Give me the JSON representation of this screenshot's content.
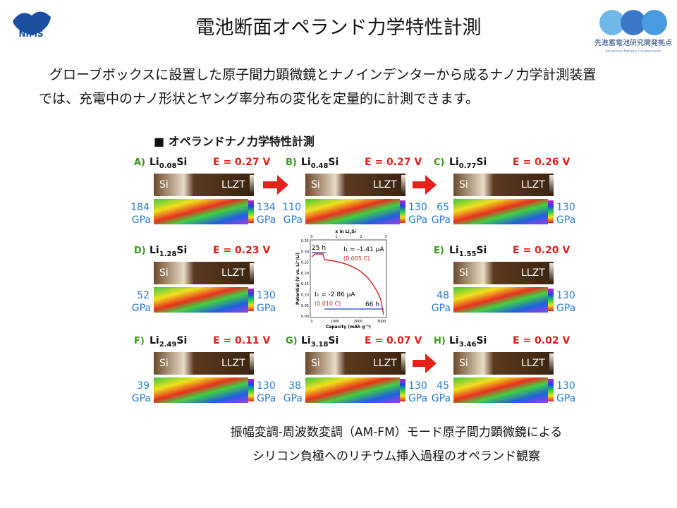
{
  "header": {
    "title": "電池断面オペランド力学特性計測",
    "left_logo": "NIMS",
    "right_logo": "先進蓄電池研究開発拠点",
    "right_logo_sub": "Advanced Battery Collaboration"
  },
  "body": [
    "グローブボックスに設置した原子間力顕微鏡とナノインデンターから成るナノ力学計測装置",
    "では、充電中のナノ形状とヤング率分布の変化を定量的に計測できます。"
  ],
  "figure": {
    "heading": "■ オペランドナノ力学特性計測",
    "panels": [
      {
        "letter": "A)",
        "li": "Li",
        "sub": "0.08",
        "si": "Si",
        "potential": "E = 0.27 V",
        "img_left": "Si",
        "img_right": "LLZT",
        "min": "184",
        "max": "134",
        "unit": "GPa"
      },
      {
        "letter": "B)",
        "li": "Li",
        "sub": "0.48",
        "si": "Si",
        "potential": "E = 0.27 V",
        "img_left": "Si",
        "img_right": "LLZT",
        "min": "110",
        "max": "130",
        "unit": "GPa"
      },
      {
        "letter": "C)",
        "li": "Li",
        "sub": "0.77",
        "si": "Si",
        "potential": "E = 0.26 V",
        "img_left": "Si",
        "img_right": "LLZT",
        "min": "65",
        "max": "130",
        "unit": "GPa"
      },
      {
        "letter": "D)",
        "li": "Li",
        "sub": "1.28",
        "si": "Si",
        "potential": "E = 0.23 V",
        "img_left": "Si",
        "img_right": "LLZT",
        "min": "52",
        "max": "130",
        "unit": "GPa"
      },
      {
        "letter": "E)",
        "li": "Li",
        "sub": "1.55",
        "si": "Si",
        "potential": "E = 0.20 V",
        "img_left": "Si",
        "img_right": "LLZT",
        "min": "48",
        "max": "130",
        "unit": "GPa"
      },
      {
        "letter": "F)",
        "li": "Li",
        "sub": "2.49",
        "si": "Si",
        "potential": "E = 0.11 V",
        "img_left": "Si",
        "img_right": "LLZT",
        "min": "39",
        "max": "130",
        "unit": "GPa"
      },
      {
        "letter": "G)",
        "li": "Li",
        "sub": "3.18",
        "si": "Si",
        "potential": "E = 0.07 V",
        "img_left": "Si",
        "img_right": "LLZT",
        "min": "38",
        "max": "130",
        "unit": "GPa"
      },
      {
        "letter": "H)",
        "li": "Li",
        "sub": "3.46",
        "si": "Si",
        "potential": "E = 0.02 V",
        "img_left": "Si",
        "img_right": "LLZT",
        "min": "45",
        "max": "130",
        "unit": "GPa"
      }
    ],
    "inset": {
      "top_axis": "x in Li",
      "top_axis_sub": "x",
      "top_axis_end": "Si",
      "y_axis": "Potential (V vs. Li⁺/Li)",
      "x_axis": "Capacity (mAh g⁻¹)",
      "yticks": [
        "0.35",
        "0.30",
        "0.25",
        "0.20",
        "0.15",
        "0.10",
        "0.05",
        "0.00"
      ],
      "xticks": [
        "0",
        "1000",
        "2000",
        "3000"
      ],
      "top_ticks": [
        "0",
        "1",
        "2",
        "3"
      ],
      "t1": "25 h",
      "i1": "I₁ = -1.41 μA",
      "c1": "(0.005 C)",
      "i2": "I₂ = -2.86 μA",
      "c2": "(0.010 C)",
      "t2": "66 h"
    }
  },
  "caption": [
    "振幅変調-周波数変調（AM-FM）モード原子間力顕微鏡による",
    "シリコン負極へのリチウム挿入過程のオペランド観察"
  ]
}
